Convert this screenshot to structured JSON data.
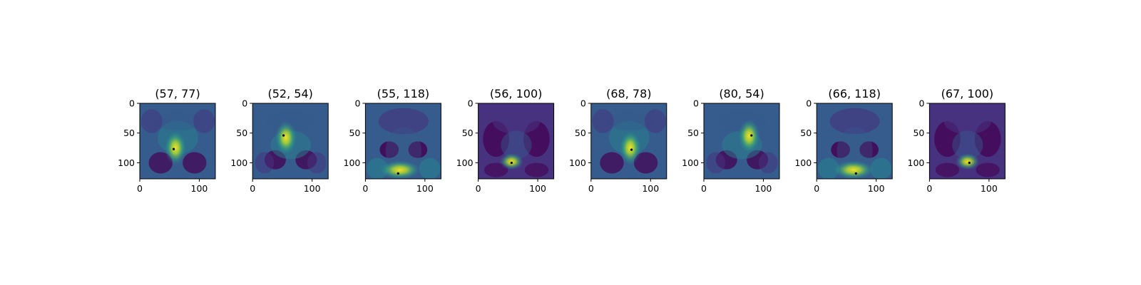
{
  "chart_data": {
    "type": "heatmap",
    "panels": [
      {
        "title": "(57, 77)",
        "marker": [
          57,
          77
        ],
        "peak": [
          60,
          75
        ],
        "variant": "mid"
      },
      {
        "title": "(52, 54)",
        "marker": [
          52,
          54
        ],
        "peak": [
          56,
          58
        ],
        "variant": "upper"
      },
      {
        "title": "(55, 118)",
        "marker": [
          55,
          118
        ],
        "peak": [
          58,
          112
        ],
        "variant": "bottom"
      },
      {
        "title": "(56, 100)",
        "marker": [
          56,
          100
        ],
        "peak": [
          56,
          98
        ],
        "variant": "low"
      },
      {
        "title": "(68, 78)",
        "marker": [
          68,
          78
        ],
        "peak": [
          66,
          75
        ],
        "variant": "mid"
      },
      {
        "title": "(80, 54)",
        "marker": [
          80,
          54
        ],
        "peak": [
          76,
          55
        ],
        "variant": "upper"
      },
      {
        "title": "(66, 118)",
        "marker": [
          66,
          118
        ],
        "peak": [
          62,
          112
        ],
        "variant": "bottom"
      },
      {
        "title": "(67, 100)",
        "marker": [
          67,
          100
        ],
        "peak": [
          64,
          98
        ],
        "variant": "low"
      }
    ],
    "x_ticks": [
      "0",
      "100"
    ],
    "y_ticks": [
      "0",
      "50",
      "100"
    ],
    "xlim": [
      0,
      127
    ],
    "ylim": [
      127,
      0
    ],
    "colormap": "viridis",
    "marker_color": "#000000",
    "grid": false
  }
}
